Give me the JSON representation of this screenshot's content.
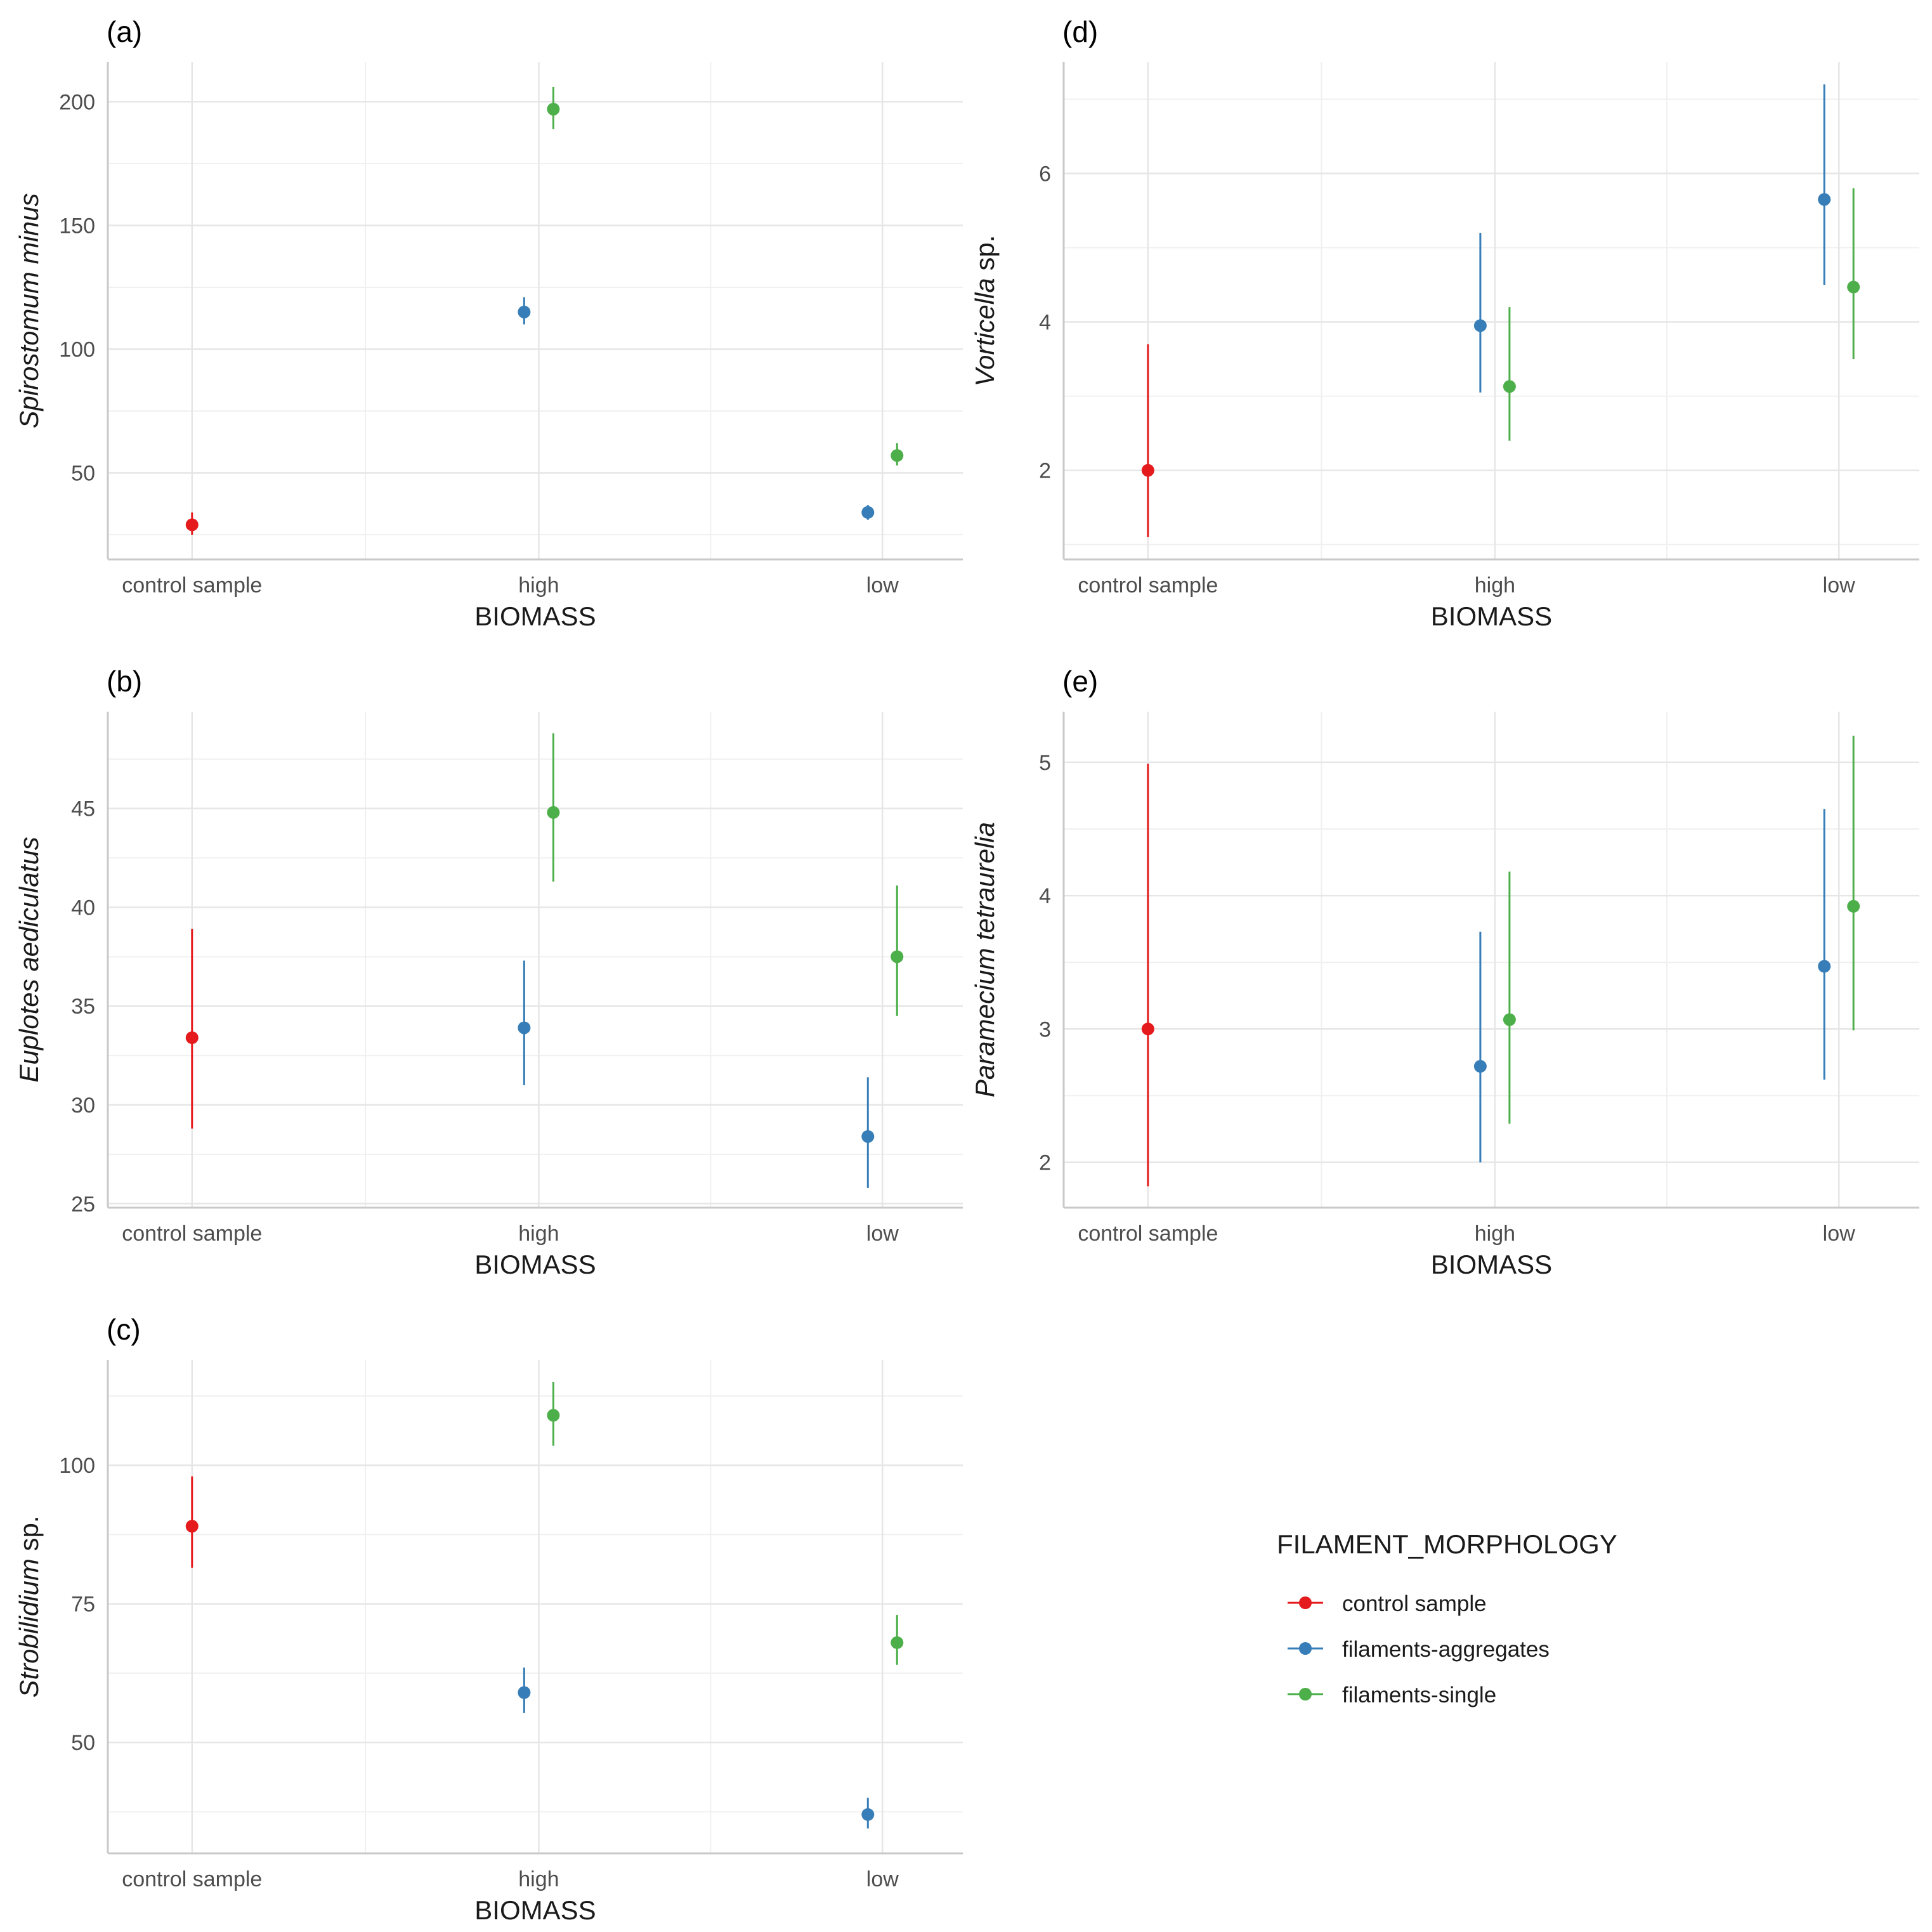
{
  "legend": {
    "title": "FILAMENT_MORPHOLOGY",
    "items": [
      {
        "label": "control sample",
        "color": "#e41a1c"
      },
      {
        "label": "filaments-aggregates",
        "color": "#377eb8"
      },
      {
        "label": "filaments-single",
        "color": "#4daf4a"
      }
    ]
  },
  "chart_data": [
    {
      "type": "scatter",
      "panel": "(a)",
      "xlabel": "BIOMASS",
      "ylabel": {
        "italic": "Spirostomum minus",
        "suffix": ""
      },
      "categories": [
        "control sample",
        "high",
        "low"
      ],
      "ylim": [
        15,
        216
      ],
      "yticks": [
        50,
        100,
        150,
        200
      ],
      "ygrid_minor": [
        25,
        75,
        125,
        175
      ],
      "series": [
        {
          "name": "control sample",
          "color": "#e41a1c",
          "points": [
            {
              "x": "control sample",
              "y": 29,
              "lo": 25,
              "hi": 34
            }
          ]
        },
        {
          "name": "filaments-aggregates",
          "color": "#377eb8",
          "points": [
            {
              "x": "high",
              "y": 115,
              "lo": 110,
              "hi": 121
            },
            {
              "x": "low",
              "y": 34,
              "lo": 31,
              "hi": 37
            }
          ]
        },
        {
          "name": "filaments-single",
          "color": "#4daf4a",
          "points": [
            {
              "x": "high",
              "y": 197,
              "lo": 189,
              "hi": 206
            },
            {
              "x": "low",
              "y": 57,
              "lo": 53,
              "hi": 62
            }
          ]
        }
      ]
    },
    {
      "type": "scatter",
      "panel": "(b)",
      "xlabel": "BIOMASS",
      "ylabel": {
        "italic": "Euplotes aediculatus",
        "suffix": ""
      },
      "categories": [
        "control sample",
        "high",
        "low"
      ],
      "ylim": [
        24.8,
        49.9
      ],
      "yticks": [
        25,
        30,
        35,
        40,
        45
      ],
      "ygrid_minor": [
        27.5,
        32.5,
        37.5,
        42.5,
        47.5
      ],
      "series": [
        {
          "name": "control sample",
          "color": "#e41a1c",
          "points": [
            {
              "x": "control sample",
              "y": 33.4,
              "lo": 28.8,
              "hi": 38.9
            }
          ]
        },
        {
          "name": "filaments-aggregates",
          "color": "#377eb8",
          "points": [
            {
              "x": "high",
              "y": 33.9,
              "lo": 31.0,
              "hi": 37.3
            },
            {
              "x": "low",
              "y": 28.4,
              "lo": 25.8,
              "hi": 31.4
            }
          ]
        },
        {
          "name": "filaments-single",
          "color": "#4daf4a",
          "points": [
            {
              "x": "high",
              "y": 44.8,
              "lo": 41.3,
              "hi": 48.8
            },
            {
              "x": "low",
              "y": 37.5,
              "lo": 34.5,
              "hi": 41.1
            }
          ]
        }
      ]
    },
    {
      "type": "scatter",
      "panel": "(c)",
      "xlabel": "BIOMASS",
      "ylabel": {
        "italic": "Strobilidium",
        "suffix": " sp."
      },
      "categories": [
        "control sample",
        "high",
        "low"
      ],
      "ylim": [
        30,
        119
      ],
      "yticks": [
        50,
        75,
        100
      ],
      "ygrid_minor": [
        37.5,
        62.5,
        87.5,
        112.5
      ],
      "series": [
        {
          "name": "control sample",
          "color": "#e41a1c",
          "points": [
            {
              "x": "control sample",
              "y": 89,
              "lo": 81.5,
              "hi": 98
            }
          ]
        },
        {
          "name": "filaments-aggregates",
          "color": "#377eb8",
          "points": [
            {
              "x": "high",
              "y": 59,
              "lo": 55.3,
              "hi": 63.5
            },
            {
              "x": "low",
              "y": 37,
              "lo": 34.5,
              "hi": 40
            }
          ]
        },
        {
          "name": "filaments-single",
          "color": "#4daf4a",
          "points": [
            {
              "x": "high",
              "y": 109,
              "lo": 103.5,
              "hi": 115
            },
            {
              "x": "low",
              "y": 68,
              "lo": 64,
              "hi": 73
            }
          ]
        }
      ]
    },
    {
      "type": "scatter",
      "panel": "(d)",
      "xlabel": "BIOMASS",
      "ylabel": {
        "italic": "Vorticella",
        "suffix": " sp."
      },
      "categories": [
        "control sample",
        "high",
        "low"
      ],
      "ylim": [
        0.8,
        7.5
      ],
      "yticks": [
        2,
        4,
        6
      ],
      "ygrid_minor": [
        1,
        3,
        5,
        7
      ],
      "series": [
        {
          "name": "control sample",
          "color": "#e41a1c",
          "points": [
            {
              "x": "control sample",
              "y": 2.0,
              "lo": 1.1,
              "hi": 3.7
            }
          ]
        },
        {
          "name": "filaments-aggregates",
          "color": "#377eb8",
          "points": [
            {
              "x": "high",
              "y": 3.95,
              "lo": 3.05,
              "hi": 5.2
            },
            {
              "x": "low",
              "y": 5.65,
              "lo": 4.5,
              "hi": 7.2
            }
          ]
        },
        {
          "name": "filaments-single",
          "color": "#4daf4a",
          "points": [
            {
              "x": "high",
              "y": 3.13,
              "lo": 2.4,
              "hi": 4.2
            },
            {
              "x": "low",
              "y": 4.47,
              "lo": 3.5,
              "hi": 5.8
            }
          ]
        }
      ]
    },
    {
      "type": "scatter",
      "panel": "(e)",
      "xlabel": "BIOMASS",
      "ylabel": {
        "italic": "Paramecium tetraurelia",
        "suffix": ""
      },
      "categories": [
        "control sample",
        "high",
        "low"
      ],
      "ylim": [
        1.66,
        5.38
      ],
      "yticks": [
        2,
        3,
        4,
        5
      ],
      "ygrid_minor": [
        2.5,
        3.5,
        4.5
      ],
      "series": [
        {
          "name": "control sample",
          "color": "#e41a1c",
          "points": [
            {
              "x": "control sample",
              "y": 3.0,
              "lo": 1.82,
              "hi": 4.99
            }
          ]
        },
        {
          "name": "filaments-aggregates",
          "color": "#377eb8",
          "points": [
            {
              "x": "high",
              "y": 2.72,
              "lo": 2.0,
              "hi": 3.73
            },
            {
              "x": "low",
              "y": 3.47,
              "lo": 2.62,
              "hi": 4.65
            }
          ]
        },
        {
          "name": "filaments-single",
          "color": "#4daf4a",
          "points": [
            {
              "x": "high",
              "y": 3.07,
              "lo": 2.29,
              "hi": 4.18
            },
            {
              "x": "low",
              "y": 3.92,
              "lo": 2.99,
              "hi": 5.2
            }
          ]
        }
      ]
    }
  ]
}
